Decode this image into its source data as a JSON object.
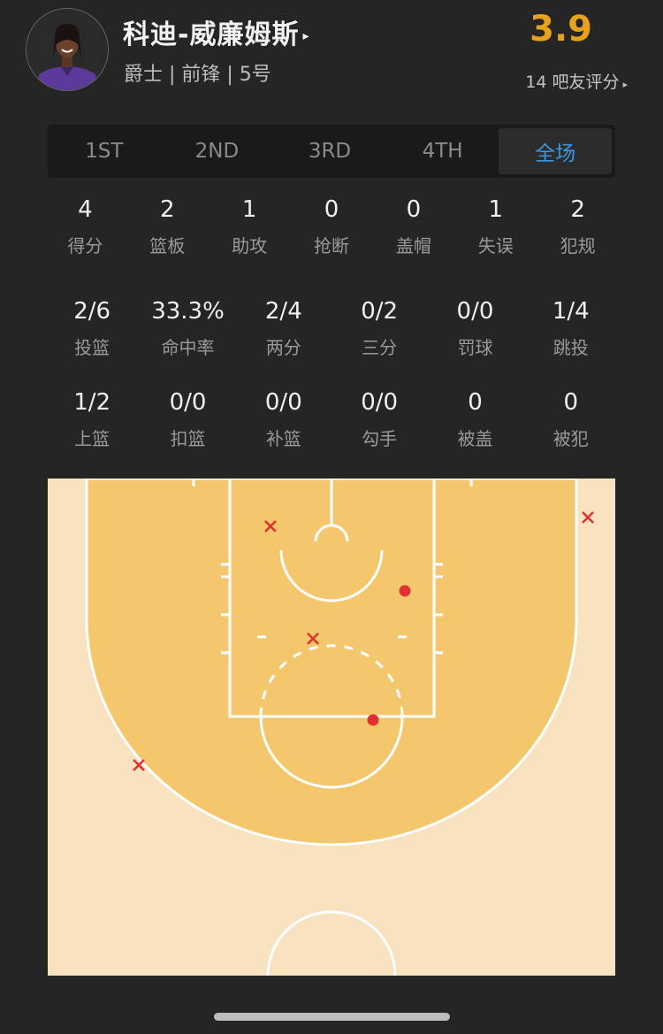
{
  "player": {
    "name": "科迪-威廉姆斯",
    "name_arrow": "▸",
    "info": "爵士 | 前锋 | 5号",
    "rating": "3.9",
    "raters": "14 吧友评分",
    "raters_arrow": "▸"
  },
  "tabs": [
    {
      "label": "1ST",
      "active": false
    },
    {
      "label": "2ND",
      "active": false
    },
    {
      "label": "3RD",
      "active": false
    },
    {
      "label": "4TH",
      "active": false
    },
    {
      "label": "全场",
      "active": true
    }
  ],
  "basic_stats": [
    {
      "value": "4",
      "label": "得分"
    },
    {
      "value": "2",
      "label": "篮板"
    },
    {
      "value": "1",
      "label": "助攻"
    },
    {
      "value": "0",
      "label": "抢断"
    },
    {
      "value": "0",
      "label": "盖帽"
    },
    {
      "value": "1",
      "label": "失误"
    },
    {
      "value": "2",
      "label": "犯规"
    }
  ],
  "shooting_stats": [
    {
      "value": "2/6",
      "label": "投篮"
    },
    {
      "value": "33.3%",
      "label": "命中率"
    },
    {
      "value": "2/4",
      "label": "两分"
    },
    {
      "value": "0/2",
      "label": "三分"
    },
    {
      "value": "0/0",
      "label": "罚球"
    },
    {
      "value": "1/4",
      "label": "跳投"
    }
  ],
  "shot_type_stats": [
    {
      "value": "1/2",
      "label": "上篮"
    },
    {
      "value": "0/0",
      "label": "扣篮"
    },
    {
      "value": "0/0",
      "label": "补篮"
    },
    {
      "value": "0/0",
      "label": "勾手"
    },
    {
      "value": "0",
      "label": "被盖"
    },
    {
      "value": "0",
      "label": "被犯"
    }
  ],
  "shot_chart": {
    "shots": [
      {
        "result": "miss"
      },
      {
        "result": "miss"
      },
      {
        "result": "make"
      },
      {
        "result": "miss"
      },
      {
        "result": "make"
      },
      {
        "result": "miss"
      }
    ],
    "colors": {
      "court_inner": "#f5c76c",
      "court_outer": "#f8e2bf",
      "lines": "#ffffff",
      "shot": "#e0302f",
      "accent": "#3c95e0",
      "rating": "#e6a21b"
    }
  }
}
